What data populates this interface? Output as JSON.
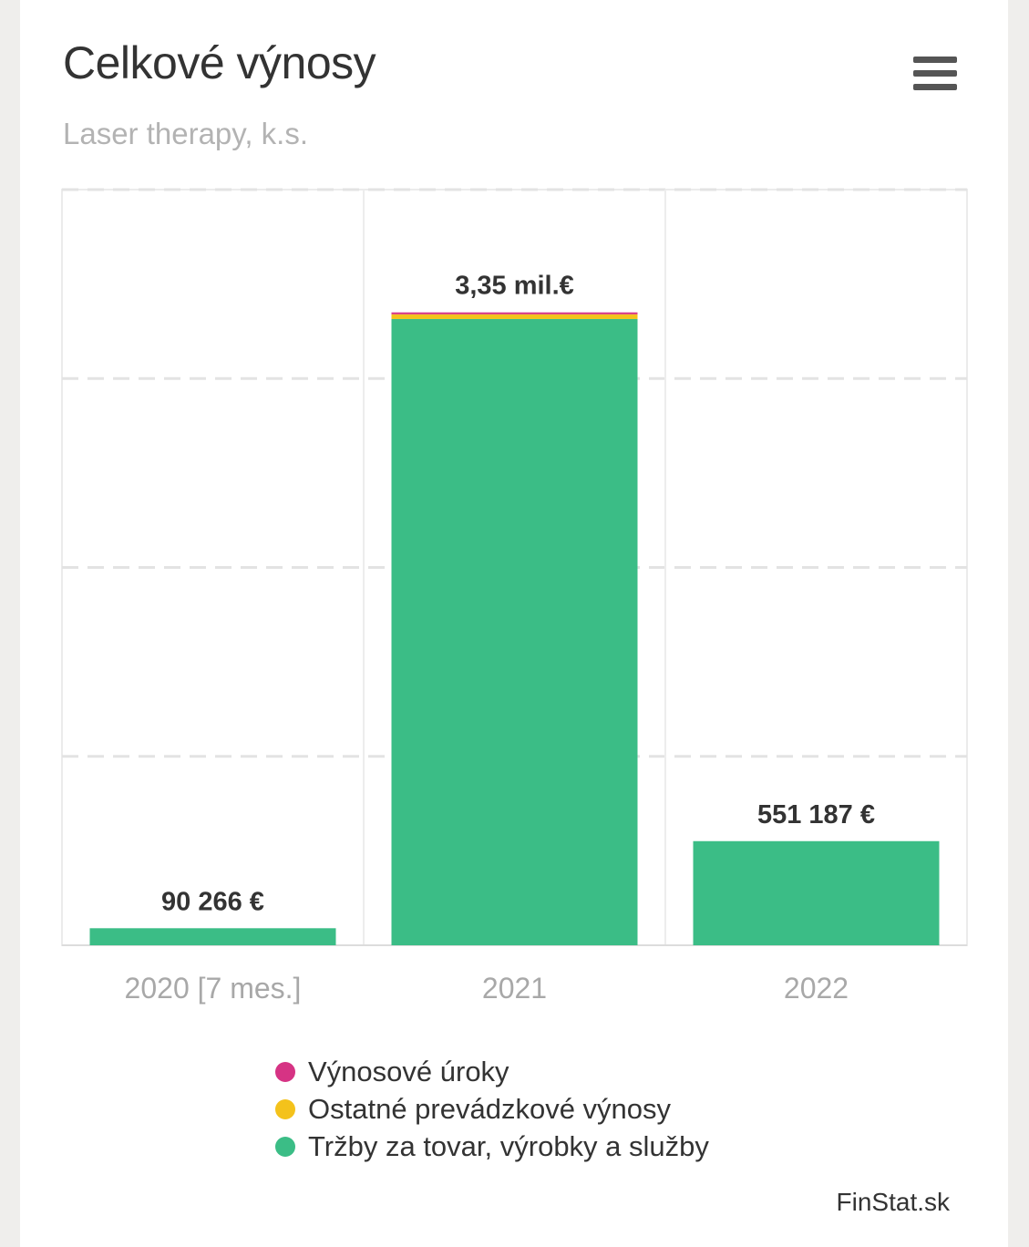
{
  "header": {
    "title": "Celkové výnosy",
    "subtitle": "Laser therapy, k.s.",
    "menu_icon": "hamburger-menu-icon"
  },
  "chart_data": {
    "type": "bar",
    "stacked": true,
    "categories": [
      "2020 [7 mes.]",
      "2021",
      "2022"
    ],
    "series": [
      {
        "name": "Výnosové úroky",
        "color": "#d63384",
        "values": [
          0,
          10000,
          0
        ]
      },
      {
        "name": "Ostatné prevádzkové výnosy",
        "color": "#f4c21b",
        "values": [
          0,
          25000,
          0
        ]
      },
      {
        "name": "Tržby za tovar, výrobky a služby",
        "color": "#3bbd86",
        "values": [
          90266,
          3315000,
          551187
        ]
      }
    ],
    "totals": [
      90266,
      3350000,
      551187
    ],
    "data_labels": [
      "90 266 €",
      "3,35 mil.€",
      "551 187 €"
    ],
    "ylim": [
      0,
      4000000
    ],
    "grid": true,
    "legend_position": "bottom"
  },
  "footer": {
    "credit": "FinStat.sk"
  }
}
